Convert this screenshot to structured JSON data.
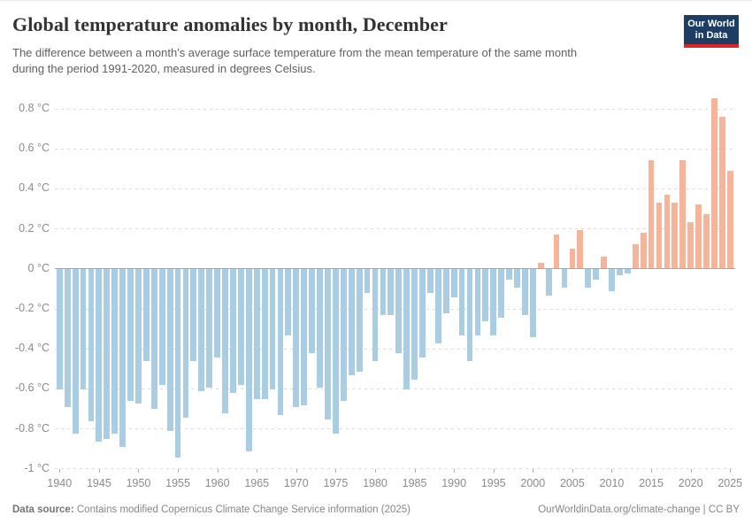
{
  "header": {
    "title": "Global temperature anomalies by month, December",
    "subtitle_lines": [
      "The difference between a month's average surface temperature from the mean temperature of the same month",
      "during the period 1991-2020, measured in degrees Celsius."
    ],
    "logo": {
      "line1": "Our World",
      "line2": "in Data",
      "bg_color": "#1d3d63",
      "stripe_color": "#d8262c"
    }
  },
  "chart_data": {
    "type": "bar",
    "title": "Global temperature anomalies by month, December",
    "x": [
      1940,
      1941,
      1942,
      1943,
      1944,
      1945,
      1946,
      1947,
      1948,
      1949,
      1950,
      1951,
      1952,
      1953,
      1954,
      1955,
      1956,
      1957,
      1958,
      1959,
      1960,
      1961,
      1962,
      1963,
      1964,
      1965,
      1966,
      1967,
      1968,
      1969,
      1970,
      1971,
      1972,
      1973,
      1974,
      1975,
      1976,
      1977,
      1978,
      1979,
      1980,
      1981,
      1982,
      1983,
      1984,
      1985,
      1986,
      1987,
      1988,
      1989,
      1990,
      1991,
      1992,
      1993,
      1994,
      1995,
      1996,
      1997,
      1998,
      1999,
      2000,
      2001,
      2002,
      2003,
      2004,
      2005,
      2006,
      2007,
      2008,
      2009,
      2010,
      2011,
      2012,
      2013,
      2014,
      2015,
      2016,
      2017,
      2018,
      2019,
      2020,
      2021,
      2022,
      2023,
      2024,
      2025
    ],
    "values": [
      -0.6,
      -0.69,
      -0.82,
      -0.6,
      -0.76,
      -0.86,
      -0.85,
      -0.82,
      -0.89,
      -0.66,
      -0.67,
      -0.46,
      -0.7,
      -0.58,
      -0.81,
      -0.94,
      -0.74,
      -0.46,
      -0.61,
      -0.59,
      -0.44,
      -0.72,
      -0.62,
      -0.58,
      -0.91,
      -0.65,
      -0.65,
      -0.6,
      -0.73,
      -0.33,
      -0.69,
      -0.68,
      -0.42,
      -0.59,
      -0.75,
      -0.82,
      -0.66,
      -0.53,
      -0.51,
      -0.12,
      -0.46,
      -0.23,
      -0.23,
      -0.42,
      -0.6,
      -0.55,
      -0.44,
      -0.12,
      -0.37,
      -0.22,
      -0.14,
      -0.33,
      -0.46,
      -0.33,
      -0.26,
      -0.33,
      -0.24,
      -0.05,
      -0.09,
      -0.23,
      -0.34,
      0.03,
      -0.13,
      0.17,
      -0.09,
      0.1,
      0.19,
      -0.09,
      -0.05,
      0.06,
      -0.11,
      -0.03,
      -0.02,
      0.12,
      0.18,
      0.54,
      0.33,
      0.37,
      0.33,
      0.54,
      0.23,
      0.32,
      0.27,
      0.85,
      0.76,
      0.49
    ],
    "xtick_labels": [
      "1940",
      "1945",
      "1950",
      "1955",
      "1960",
      "1965",
      "1970",
      "1975",
      "1980",
      "1985",
      "1990",
      "1995",
      "2000",
      "2005",
      "2010",
      "2015",
      "2020",
      "2025"
    ],
    "yticks": [
      0.8,
      0.6,
      0.4,
      0.2,
      0,
      -0.2,
      -0.4,
      -0.6,
      -0.8,
      -1
    ],
    "ytick_labels": [
      "0.8 °C",
      "0.6 °C",
      "0.4 °C",
      "0.2 °C",
      "0 °C",
      "-0.2 °C",
      "-0.4 °C",
      "-0.6 °C",
      "-0.8 °C",
      "-1 °C"
    ],
    "ylim": [
      -1,
      0.9
    ],
    "xlabel": "",
    "ylabel": "",
    "legend": "none",
    "grid": "horizontal-dashed",
    "colors": {
      "positive": "#f6b49a",
      "negative": "#a9cde3",
      "zero_line": "#a8a8a8",
      "gridline": "#dcdcdc",
      "axis_text": "#8b8b8b"
    }
  },
  "footer": {
    "source_label": "Data source:",
    "source_text": " Contains modified Copernicus Climate Change Service information (2025)",
    "right_text": "OurWorldinData.org/climate-change | CC BY"
  }
}
